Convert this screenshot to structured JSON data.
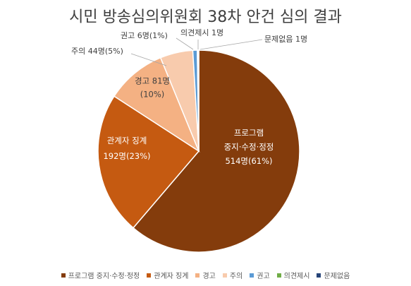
{
  "chart_data": {
    "type": "pie",
    "title": "시민 방송심의위원회 38차 안건 심의 결과",
    "slices": [
      {
        "name": "프로그램 중지·수정·정정",
        "label_lines": [
          "프로그램",
          "중지·수정·정정",
          "514명(61%)"
        ],
        "value": 514,
        "percent": 61,
        "color": "#843c0c"
      },
      {
        "name": "관계자 징계",
        "label_lines": [
          "관계자 징계",
          "192명(23%)"
        ],
        "value": 192,
        "percent": 23,
        "color": "#c55a11"
      },
      {
        "name": "경고",
        "label_lines": [
          "경고 81명",
          "(10%)"
        ],
        "value": 81,
        "percent": 10,
        "color": "#f4b183"
      },
      {
        "name": "주의",
        "label_lines": [
          "주의 44명(5%)"
        ],
        "value": 44,
        "percent": 5,
        "color": "#f8cbad"
      },
      {
        "name": "권고",
        "label_lines": [
          "권고 6명(1%)"
        ],
        "value": 6,
        "percent": 1,
        "color": "#5b9bd5"
      },
      {
        "name": "의견제시",
        "label_lines": [
          "의견제시 1명"
        ],
        "value": 1,
        "color": "#70ad47"
      },
      {
        "name": "문제없음",
        "label_lines": [
          "문제없음 1명"
        ],
        "value": 1,
        "color": "#264478"
      }
    ],
    "legend_position": "bottom"
  }
}
